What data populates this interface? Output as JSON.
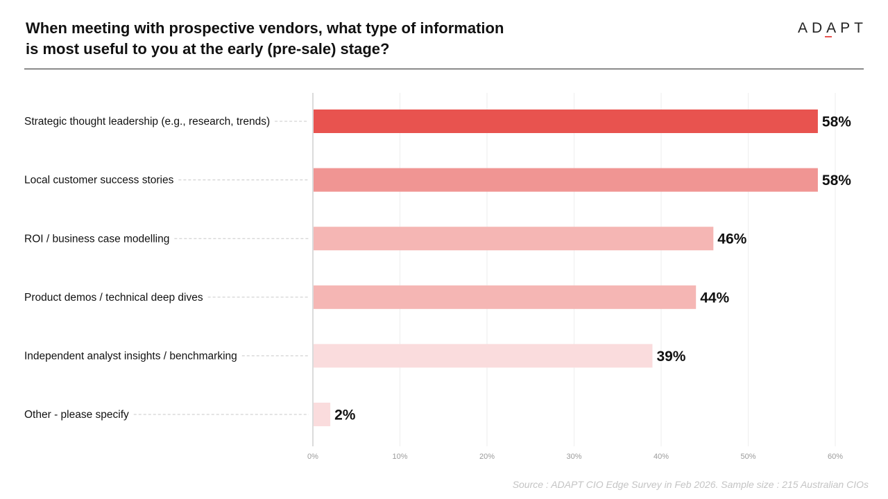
{
  "header": {
    "title_line1": "When meeting with prospective vendors, what type of information",
    "title_line2": "is most useful to you at the early (pre-sale) stage?",
    "logo": "ADAPT"
  },
  "footer": {
    "source": "Source : ADAPT CIO Edge Survey in Feb 2026. Sample size : 215 Australian CIOs"
  },
  "colors": {
    "accent": "#e8534f",
    "gridline": "#eeeeee",
    "axis": "#cfcfcf"
  },
  "chart_data": {
    "type": "bar",
    "orientation": "horizontal",
    "title": "When meeting with prospective vendors, what type of information is most useful to you at the early (pre-sale) stage?",
    "xlabel": "",
    "ylabel": "",
    "xlim": [
      0,
      60
    ],
    "grid": true,
    "ticks": [
      "0%",
      "10%",
      "20%",
      "30%",
      "40%",
      "50%",
      "60%"
    ],
    "categories": [
      "Strategic thought leadership (e.g., research, trends)",
      "Local customer success stories",
      "ROI / business case modelling",
      "Product demos / technical deep dives",
      "Independent analyst insights / benchmarking",
      "Other - please specify"
    ],
    "values": [
      58,
      58,
      46,
      44,
      39,
      2
    ],
    "labels": [
      "58%",
      "58%",
      "46%",
      "44%",
      "39%",
      "2%"
    ],
    "bar_colors": [
      "#e8534f",
      "#f09593",
      "#f5b6b4",
      "#f5b6b4",
      "#fadcdd",
      "#fadcdd"
    ]
  }
}
